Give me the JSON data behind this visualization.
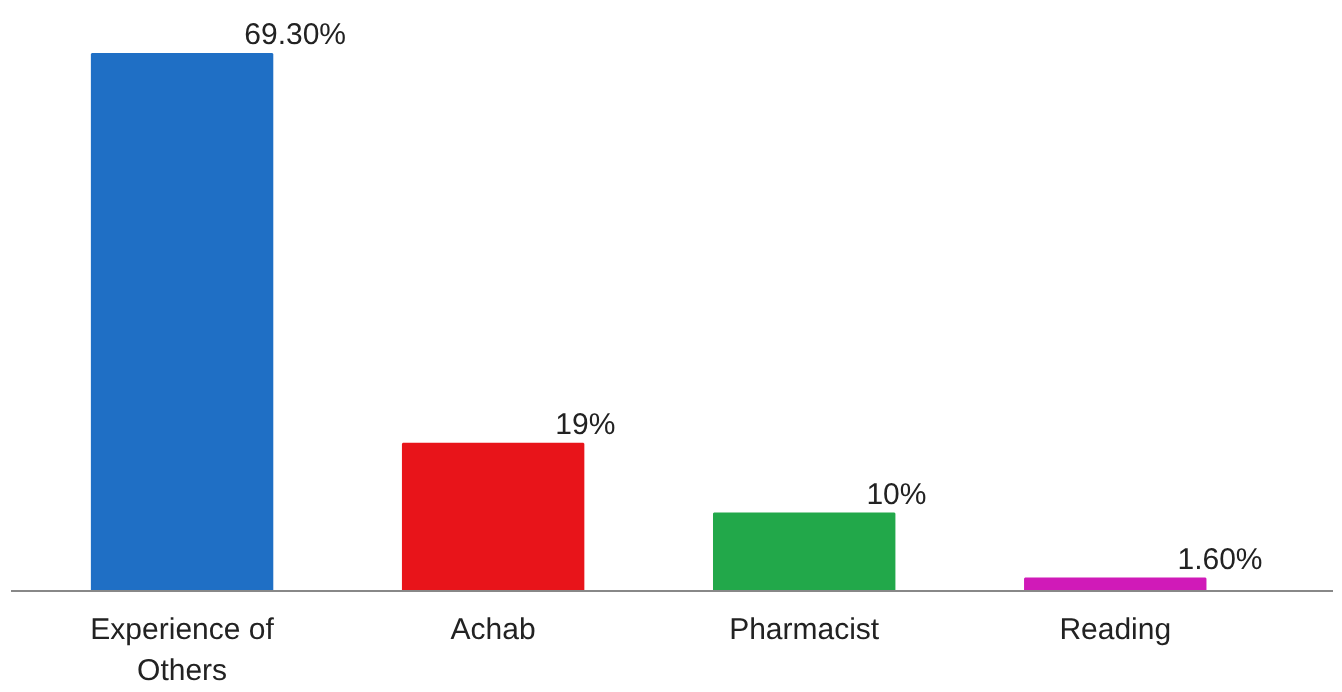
{
  "chart_data": {
    "type": "bar",
    "categories": [
      "Experience of Others",
      "Achab",
      "Pharmacist",
      "Reading"
    ],
    "values": [
      69.3,
      19,
      10,
      1.6
    ],
    "colors": [
      "#1f6fc5",
      "#e8141a",
      "#22a84a",
      "#d01ab8"
    ],
    "value_labels": [
      "69.30%",
      "19%",
      "10%",
      "1.60%"
    ],
    "tick_labels": "x",
    "grid": false
  }
}
